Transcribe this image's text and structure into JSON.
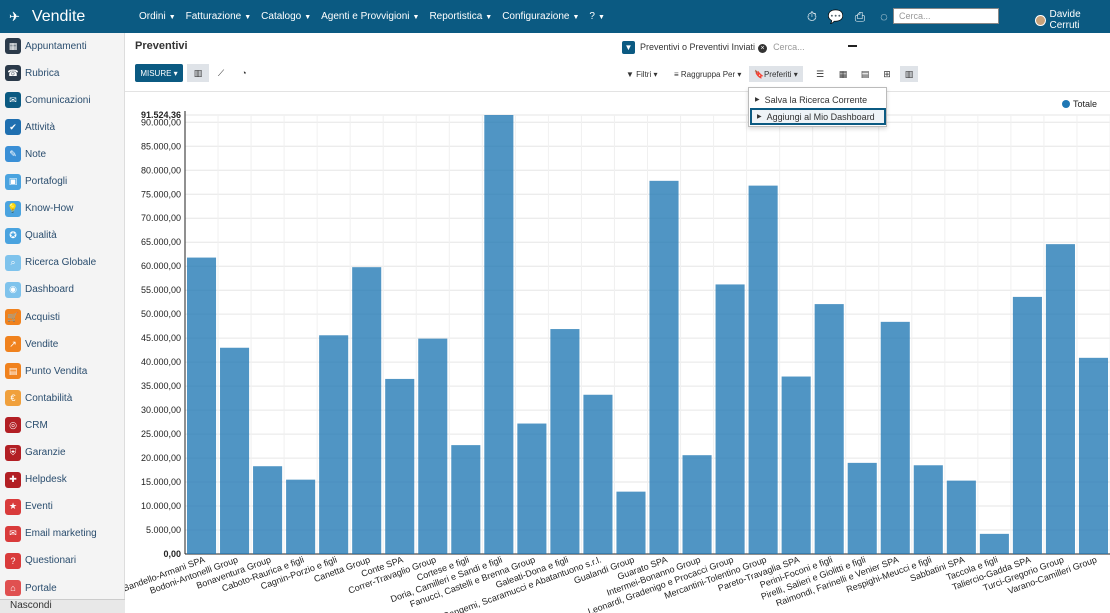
{
  "app": {
    "title": "Vendite"
  },
  "menu": [
    "Ordini",
    "Fatturazione",
    "Catalogo",
    "Agenti e Provvigioni",
    "Reportistica",
    "Configurazione",
    "?"
  ],
  "top_search": {
    "placeholder": "Cerca..."
  },
  "user": {
    "name": "Davide Cerruti"
  },
  "sidebar": {
    "items": [
      {
        "label": "Appuntamenti",
        "icon": "calendar-icon",
        "color": "#2b3a4a"
      },
      {
        "label": "Rubrica",
        "icon": "address-book-icon",
        "color": "#2b3a4a"
      },
      {
        "label": "Comunicazioni",
        "icon": "chat-icon",
        "color": "#0b5a82"
      },
      {
        "label": "Attività",
        "icon": "check-icon",
        "color": "#1f6fb0"
      },
      {
        "label": "Note",
        "icon": "note-icon",
        "color": "#3a8fd6"
      },
      {
        "label": "Portafogli",
        "icon": "portfolio-icon",
        "color": "#4aa3df"
      },
      {
        "label": "Know-How",
        "icon": "lightbulb-icon",
        "color": "#4aa3df"
      },
      {
        "label": "Qualità",
        "icon": "quality-icon",
        "color": "#4aa3df"
      },
      {
        "label": "Ricerca Globale",
        "icon": "search-icon",
        "color": "#7fc3ec"
      },
      {
        "label": "Dashboard",
        "icon": "dashboard-icon",
        "color": "#7fc3ec"
      },
      {
        "label": "Acquisti",
        "icon": "cart-icon",
        "color": "#f0821e"
      },
      {
        "label": "Vendite",
        "icon": "sales-icon",
        "color": "#f0821e"
      },
      {
        "label": "Punto Vendita",
        "icon": "shop-icon",
        "color": "#f0821e"
      },
      {
        "label": "Contabilità",
        "icon": "accounting-icon",
        "color": "#f0a03c"
      },
      {
        "label": "CRM",
        "icon": "crm-icon",
        "color": "#b21f24"
      },
      {
        "label": "Garanzie",
        "icon": "shield-icon",
        "color": "#b21f24"
      },
      {
        "label": "Helpdesk",
        "icon": "helpdesk-icon",
        "color": "#b21f24"
      },
      {
        "label": "Eventi",
        "icon": "event-icon",
        "color": "#d93b3b"
      },
      {
        "label": "Email marketing",
        "icon": "email-icon",
        "color": "#d93b3b"
      },
      {
        "label": "Questionari",
        "icon": "survey-icon",
        "color": "#d93b3b"
      },
      {
        "label": "Portale",
        "icon": "portal-icon",
        "color": "#e05050"
      }
    ],
    "hide_label": "Nascondi"
  },
  "breadcrumb": "Preventivi",
  "search": {
    "facet": "Preventivi o Preventivi Inviati",
    "placeholder": "Cerca..."
  },
  "buttons": {
    "misure": "MISURE",
    "filtri": "Filtri",
    "raggruppa": "Raggruppa Per",
    "preferiti": "Preferiti"
  },
  "favorites_menu": [
    "Salva la Ricerca Corrente",
    "Aggiungi al Mio Dashboard"
  ],
  "chart_data": {
    "type": "bar",
    "categories": [
      "Bandello-Armani SPA",
      "Bodoni-Antonelli Group",
      "Bonaventura Group",
      "Caboto-Raurica e figli",
      "Cagnin-Porzio e figli",
      "Canetta Group",
      "Conte SPA",
      "Correr-Travaglio Group",
      "Cortese e figli",
      "Doria, Camilleri e Sandi e figli",
      "Fanucci, Castelli e Brenna Group",
      "Galeati-Dona e figli",
      "Gangemi, Scaramucci e Abatantuono s.r.l.",
      "Gualandi Group",
      "Guarato SPA",
      "Intermei-Bonanno Group",
      "Leonardi, Gradenigo e Procacci Group",
      "Mercantini-Tolentino Group",
      "Pareto-Travaglia SPA",
      "Perini-Foconi e figli",
      "Pirelli, Salieri e Giolitti e figli",
      "Raimondi, Farinelli e Venier SPA",
      "Respighi-Meucci e figli",
      "Sabbatini SPA",
      "Taccola e figli",
      "Taliercio-Gadda SPA",
      "Turci-Gregorio Group",
      "Varano-Camilleri Group"
    ],
    "series": [
      {
        "name": "Totale",
        "values": [
          61800,
          43000,
          18300,
          15500,
          45600,
          59800,
          36500,
          44900,
          22700,
          91524.36,
          27200,
          46900,
          33200,
          13000,
          77800,
          20600,
          56200,
          76800,
          37000,
          52100,
          19000,
          48400,
          18500,
          15300,
          4200,
          53600,
          64600,
          40900
        ]
      }
    ],
    "ylim": [
      0,
      91524.36
    ],
    "yticks": [
      "0,00",
      "5.000,00",
      "10.000,00",
      "15.000,00",
      "20.000,00",
      "25.000,00",
      "30.000,00",
      "35.000,00",
      "40.000,00",
      "45.000,00",
      "50.000,00",
      "55.000,00",
      "60.000,00",
      "65.000,00",
      "70.000,00",
      "75.000,00",
      "80.000,00",
      "85.000,00",
      "90.000,00",
      "91.524,36"
    ],
    "legend": "top-right",
    "color": "#1f77b4",
    "grid": true
  }
}
